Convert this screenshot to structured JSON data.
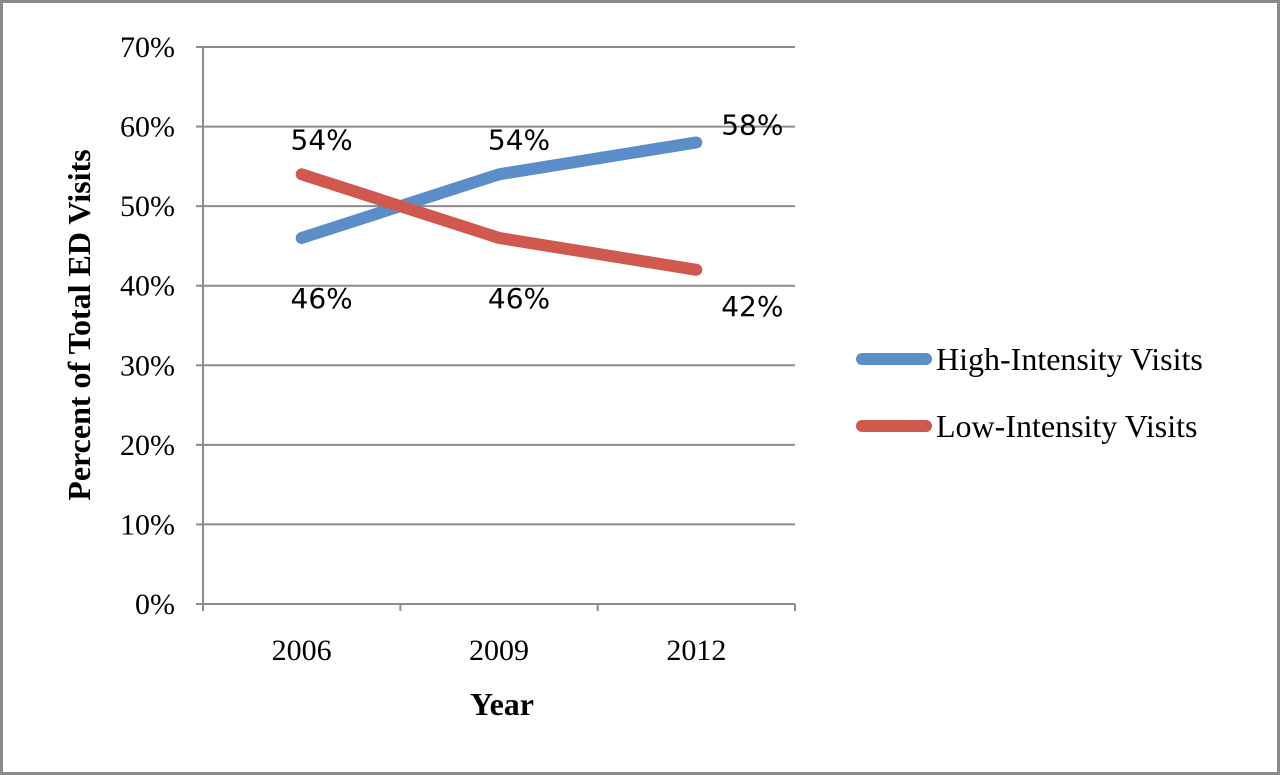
{
  "chart_data": {
    "type": "line",
    "categories": [
      "2006",
      "2009",
      "2012"
    ],
    "series": [
      {
        "name": "High-Intensity Visits",
        "values": [
          46,
          54,
          58
        ],
        "labels": [
          "46%",
          "54%",
          "58%"
        ],
        "color": "#5B8DC8"
      },
      {
        "name": "Low-Intensity Visits",
        "values": [
          54,
          46,
          42
        ],
        "labels": [
          "54%",
          "46%",
          "42%"
        ],
        "color": "#D0584F"
      }
    ],
    "xlabel": "Year",
    "ylabel": "Percent of Total ED Visits",
    "ylim": [
      0,
      70
    ],
    "yticks": [
      0,
      10,
      20,
      30,
      40,
      50,
      60,
      70
    ],
    "ytick_labels": [
      "0%",
      "10%",
      "20%",
      "30%",
      "40%",
      "50%",
      "60%",
      "70%"
    ],
    "grid": true,
    "legend_position": "right"
  }
}
